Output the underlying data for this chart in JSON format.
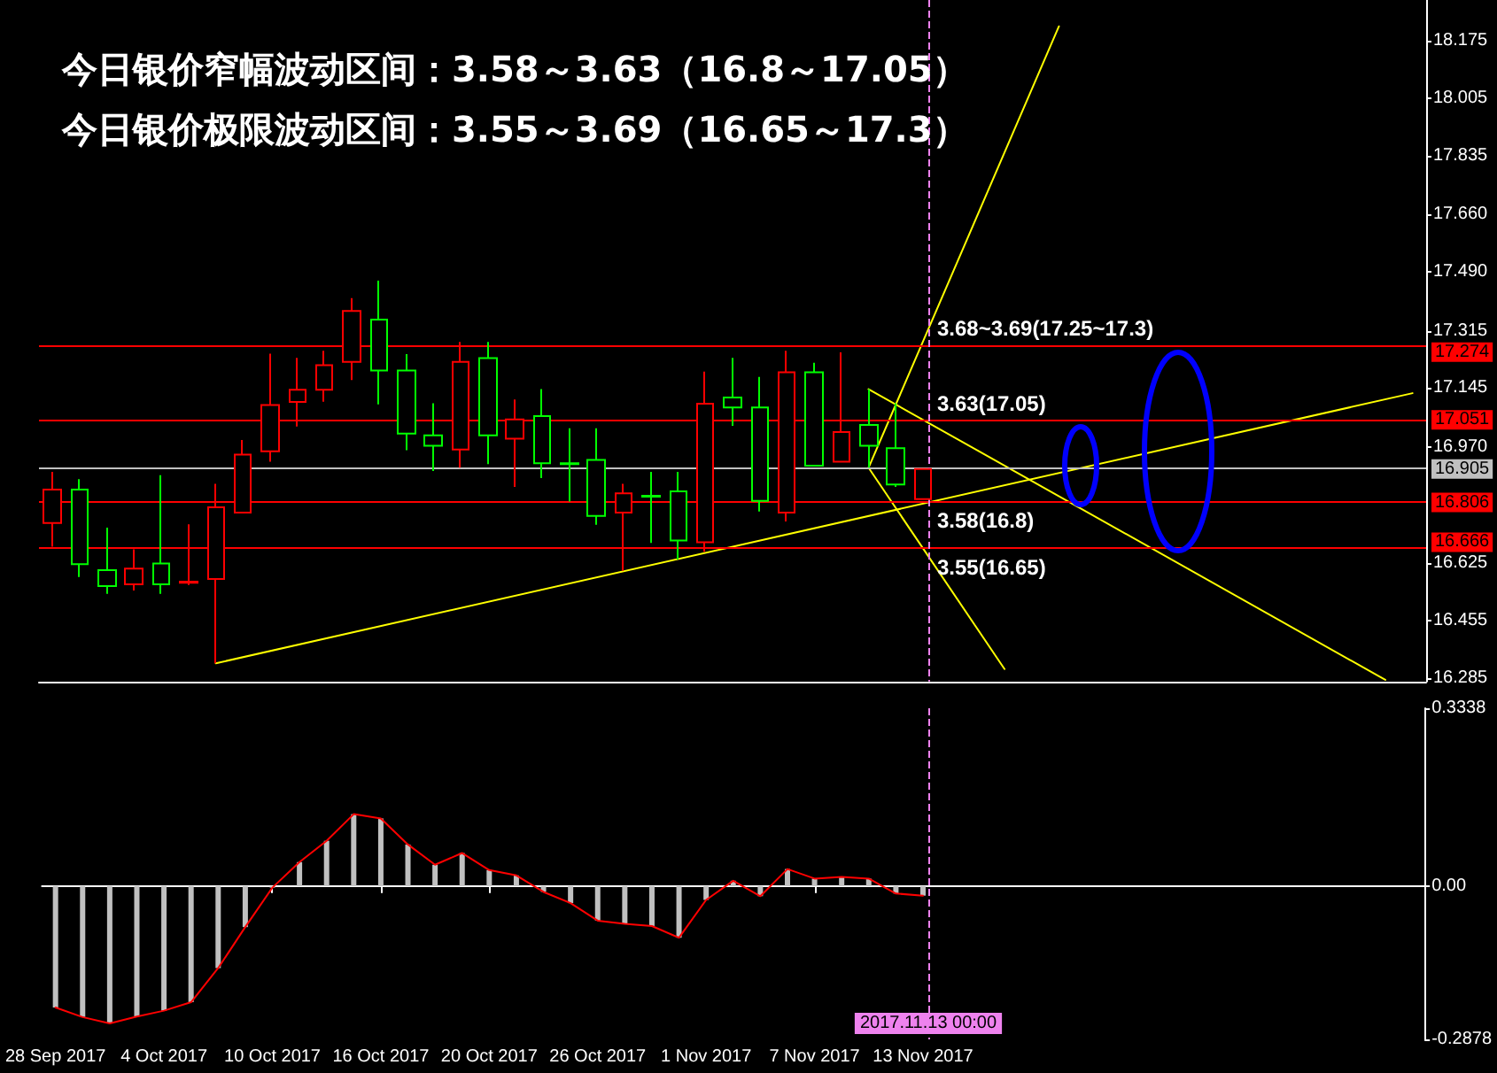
{
  "chart_data": [
    {
      "type": "candlestick",
      "title": "今日银价窄幅波动区间：3.58～3.63（16.8～17.05）",
      "subtitle": "今日银价极限波动区间：3.55～3.69（16.65～17.3）",
      "categories": [
        "28 Sep 2017",
        null,
        null,
        null,
        "4 Oct 2017",
        null,
        null,
        null,
        "10 Oct 2017",
        null,
        null,
        null,
        "16 Oct 2017",
        null,
        null,
        null,
        "20 Oct 2017",
        null,
        null,
        null,
        "26 Oct 2017",
        null,
        null,
        null,
        "1 Nov 2017",
        null,
        null,
        null,
        "7 Nov 2017",
        null,
        null,
        null,
        "13 Nov 2017",
        null,
        null,
        null,
        null,
        null,
        null,
        null,
        null,
        null,
        null,
        null,
        null,
        null,
        null,
        null,
        null,
        null,
        null
      ],
      "ohlc": [
        [
          16.745,
          16.897,
          16.675,
          16.844
        ],
        [
          16.844,
          16.875,
          16.585,
          16.623
        ],
        [
          16.605,
          16.731,
          16.535,
          16.558
        ],
        [
          16.563,
          16.667,
          16.545,
          16.61
        ],
        [
          16.625,
          16.887,
          16.535,
          16.563
        ],
        [
          16.568,
          16.741,
          16.561,
          16.571
        ],
        [
          16.579,
          16.861,
          16.329,
          16.792
        ],
        [
          16.776,
          16.991,
          16.776,
          16.948
        ],
        [
          16.958,
          17.247,
          16.927,
          17.095
        ],
        [
          17.104,
          17.235,
          17.031,
          17.14
        ],
        [
          17.14,
          17.256,
          17.105,
          17.213
        ],
        [
          17.223,
          17.412,
          17.169,
          17.374
        ],
        [
          17.348,
          17.464,
          17.097,
          17.197
        ],
        [
          17.197,
          17.246,
          16.961,
          17.01
        ],
        [
          17.005,
          17.1,
          16.899,
          16.974
        ],
        [
          16.963,
          17.282,
          16.909,
          17.223
        ],
        [
          17.234,
          17.282,
          16.92,
          17.005
        ],
        [
          16.995,
          17.111,
          16.852,
          17.052
        ],
        [
          17.062,
          17.142,
          16.878,
          16.922
        ],
        [
          16.922,
          17.026,
          16.809,
          16.92
        ],
        [
          16.932,
          17.026,
          16.74,
          16.766
        ],
        [
          16.776,
          16.861,
          16.603,
          16.833
        ],
        [
          16.826,
          16.897,
          16.686,
          16.823
        ],
        [
          16.839,
          16.897,
          16.637,
          16.693
        ],
        [
          16.688,
          17.194,
          16.66,
          17.099
        ],
        [
          17.117,
          17.235,
          17.033,
          17.088
        ],
        [
          17.088,
          17.178,
          16.779,
          16.811
        ],
        [
          16.776,
          17.256,
          16.75,
          17.192
        ],
        [
          17.192,
          17.22,
          16.915,
          16.915
        ],
        [
          16.927,
          17.251,
          16.927,
          17.015
        ],
        [
          17.036,
          17.142,
          16.909,
          16.974
        ],
        [
          16.967,
          17.1,
          16.852,
          16.859
        ],
        [
          16.816,
          16.905,
          16.816,
          16.905
        ],
        null,
        null,
        null,
        null,
        null,
        null,
        null,
        null,
        null,
        null,
        null,
        null,
        null,
        null,
        null,
        null,
        null,
        null
      ],
      "colors": [
        "#ff0000",
        "#00ff00",
        "#00ff00",
        "#ff0000",
        "#00ff00",
        "#ff0000",
        "#ff0000",
        "#ff0000",
        "#ff0000",
        "#ff0000",
        "#ff0000",
        "#ff0000",
        "#00ff00",
        "#00ff00",
        "#00ff00",
        "#ff0000",
        "#00ff00",
        "#ff0000",
        "#00ff00",
        "#00ff00",
        "#00ff00",
        "#ff0000",
        "#00ff00",
        "#00ff00",
        "#ff0000",
        "#00ff00",
        "#00ff00",
        "#ff0000",
        "#00ff00",
        "#ff0000",
        "#00ff00",
        "#00ff00",
        "#ff0000",
        null,
        null,
        null,
        null,
        null,
        null,
        null,
        null,
        null,
        null,
        null,
        null,
        null,
        null,
        null,
        null,
        null,
        null
      ],
      "series": [
        {
          "type": "line",
          "color": "#ffff00",
          "values": [
            null,
            null,
            null,
            null,
            null,
            null,
            16.329,
            null,
            null,
            null,
            null,
            null,
            null,
            null,
            null,
            null,
            null,
            null,
            null,
            null,
            null,
            null,
            null,
            null,
            null,
            null,
            null,
            null,
            null,
            null,
            null,
            null,
            null,
            null,
            null,
            null,
            null,
            null,
            null,
            null,
            null,
            null,
            null,
            null,
            null,
            null,
            null,
            null,
            null,
            null,
            17.13
          ]
        },
        {
          "type": "line",
          "color": "#ffff00",
          "values": [
            null,
            null,
            null,
            null,
            null,
            null,
            null,
            null,
            null,
            null,
            null,
            null,
            null,
            null,
            null,
            null,
            null,
            null,
            null,
            null,
            null,
            null,
            null,
            null,
            null,
            null,
            null,
            null,
            null,
            null,
            17.142,
            null,
            null,
            null,
            null,
            null,
            null,
            null,
            null,
            null,
            null,
            null,
            null,
            null,
            null,
            null,
            null,
            null,
            null,
            16.28,
            null
          ]
        },
        {
          "type": "line",
          "color": "#ffff00",
          "values": [
            null,
            null,
            null,
            null,
            null,
            null,
            null,
            null,
            null,
            null,
            null,
            null,
            null,
            null,
            null,
            null,
            null,
            null,
            null,
            null,
            null,
            null,
            null,
            null,
            null,
            null,
            null,
            null,
            null,
            null,
            16.909,
            null,
            null,
            null,
            null,
            null,
            null,
            18.218,
            null,
            null,
            null,
            null,
            null,
            null,
            null,
            null,
            null,
            null,
            null,
            null,
            null
          ]
        },
        {
          "type": "line",
          "color": "#ffff00",
          "values": [
            null,
            null,
            null,
            null,
            null,
            null,
            null,
            null,
            null,
            null,
            null,
            null,
            null,
            null,
            null,
            null,
            null,
            null,
            null,
            null,
            null,
            null,
            null,
            null,
            null,
            null,
            null,
            null,
            null,
            null,
            16.909,
            null,
            null,
            null,
            null,
            16.312,
            null,
            null,
            null,
            null,
            null,
            null,
            null,
            null,
            null,
            null,
            null,
            null,
            null,
            null,
            null
          ]
        }
      ],
      "ylim": [
        16.275,
        18.296
      ],
      "yticks": [
        16.285,
        16.455,
        16.625,
        {
          "value": 16.97,
          "label": "16.970"
        },
        17.145,
        17.315,
        {
          "value": 17.49,
          "label": "17.490"
        },
        {
          "value": 17.66,
          "label": "17.660"
        },
        17.835,
        18.005,
        18.175
      ],
      "ref_lines": [
        {
          "axis": "y",
          "value": 17.274,
          "label": "17.274",
          "color": "#ff0000"
        },
        {
          "axis": "y",
          "value": 17.051,
          "label": "17.051",
          "color": "#ff0000"
        },
        {
          "axis": "y",
          "value": 16.905,
          "label": "16.905",
          "color": "#c0c0c0"
        },
        {
          "axis": "y",
          "value": 16.806,
          "label": "16.806",
          "color": "#ff0000"
        },
        {
          "axis": "y",
          "value": 16.666,
          "label": "16.666",
          "color": "#ff0000"
        },
        {
          "axis": "x",
          "value": "13 Nov 2017",
          "color": "#ee82ee",
          "line_style": "dashed"
        }
      ],
      "annotations": [
        {
          "text": "3.68~3.69(17.25~17.3)",
          "x": "13 Nov 2017",
          "y": 17.274
        },
        {
          "text": "3.63(17.05)",
          "x": "13 Nov 2017",
          "y": 17.051
        },
        {
          "text": "3.58(16.8)",
          "x": "13 Nov 2017",
          "y": 16.806
        },
        {
          "text": "3.55(16.65)",
          "x": "13 Nov 2017",
          "y": 16.666
        }
      ],
      "tick_labels": "y"
    },
    {
      "type": "bar",
      "categories": [
        "28 Sep 2017",
        null,
        null,
        null,
        "4 Oct 2017",
        null,
        null,
        null,
        "10 Oct 2017",
        null,
        null,
        null,
        "16 Oct 2017",
        null,
        null,
        null,
        "20 Oct 2017",
        null,
        null,
        null,
        "26 Oct 2017",
        null,
        null,
        null,
        "1 Nov 2017",
        null,
        null,
        null,
        "7 Nov 2017",
        null,
        null,
        null,
        "13 Nov 2017",
        null,
        null,
        null,
        null,
        null,
        null,
        null,
        null,
        null,
        null,
        null,
        null,
        null,
        null,
        null,
        null,
        null,
        null
      ],
      "series": [
        {
          "type": "bar",
          "color": "#c0c0c0",
          "values": [
            -0.228,
            -0.246,
            -0.258,
            -0.245,
            -0.234,
            -0.218,
            -0.154,
            -0.077,
            -0.003,
            0.045,
            0.085,
            0.135,
            0.127,
            0.078,
            0.04,
            0.062,
            0.03,
            0.02,
            -0.011,
            -0.032,
            -0.065,
            -0.071,
            -0.075,
            -0.097,
            -0.026,
            0.01,
            -0.019,
            0.032,
            0.014,
            0.017,
            0.014,
            -0.014,
            -0.018,
            null,
            null,
            null,
            null,
            null,
            null,
            null,
            null,
            null,
            null,
            null,
            null,
            null,
            null,
            null,
            null,
            null,
            null
          ]
        },
        {
          "type": "line",
          "color": "#ff0000",
          "values": [
            -0.228,
            -0.246,
            -0.258,
            -0.245,
            -0.234,
            -0.218,
            -0.154,
            -0.077,
            -0.003,
            0.045,
            0.085,
            0.135,
            0.127,
            0.078,
            0.04,
            0.062,
            0.03,
            0.02,
            -0.011,
            -0.032,
            -0.065,
            -0.071,
            -0.075,
            -0.097,
            -0.026,
            0.01,
            -0.019,
            0.032,
            0.014,
            0.017,
            0.014,
            -0.014,
            -0.018,
            null,
            null,
            null,
            null,
            null,
            null,
            null,
            null,
            null,
            null,
            null,
            null,
            null,
            null,
            null,
            null,
            null,
            null
          ]
        }
      ],
      "ylim": [
        -0.2878,
        0.3338
      ],
      "yticks": [
        -0.2878,
        {
          "value": 0,
          "label": "0.00"
        },
        0.3338
      ],
      "ref_lines": [
        {
          "axis": "x",
          "value": "13 Nov 2017",
          "label": "2017.11.13 00:00",
          "color": "#ee82ee",
          "line_style": "dashed"
        }
      ]
    }
  ]
}
